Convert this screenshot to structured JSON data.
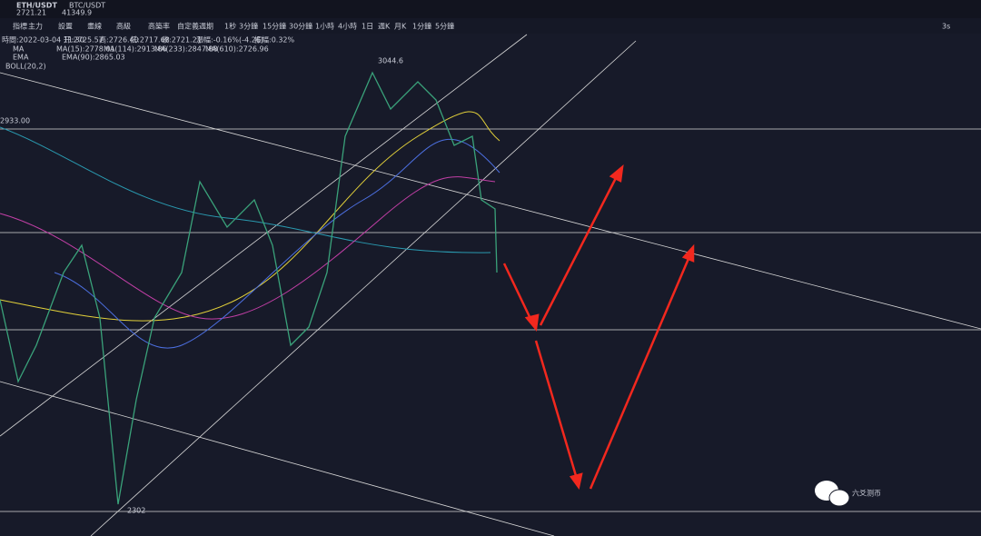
{
  "header": {
    "pair": "ETH/USDT",
    "price": "2721.21",
    "tab2": "BTC/USDT",
    "tab2_price": "41349.9"
  },
  "toolbar": {
    "items": [
      "指標",
      "主力",
      "設置",
      "畫線",
      "高級",
      "高築率",
      "自定義週期",
      "1秒",
      "3分鐘",
      "15分鐘",
      "30分鐘",
      "1小時",
      "4小時",
      "1日",
      "週K",
      "月K",
      "1分鐘",
      "5分鐘"
    ],
    "refresh": "3s"
  },
  "info": {
    "time": "時間:2022-03-04 11:30",
    "open": "开:2725.57",
    "high": "高:2726.40",
    "low": "低:2717.68",
    "close": "收:2721.21",
    "change": "漲幅:-0.16%(-4.26)",
    "amplitude": "振幅:0.32%"
  },
  "indicators": {
    "ma": {
      "name": "MA",
      "values": [
        "MA(15):2778.01",
        "MA(114):2913.86",
        "MA(233):2847.88",
        "MA(610):2726.96"
      ]
    },
    "ema": {
      "name": "EMA",
      "values": [
        "EMA(90):2865.03"
      ]
    },
    "boll": "BOLL(20,2)"
  },
  "price_labels": {
    "high": "3044.6",
    "level": "2933.00",
    "low": "2302"
  },
  "watermark": "六爻测币"
}
